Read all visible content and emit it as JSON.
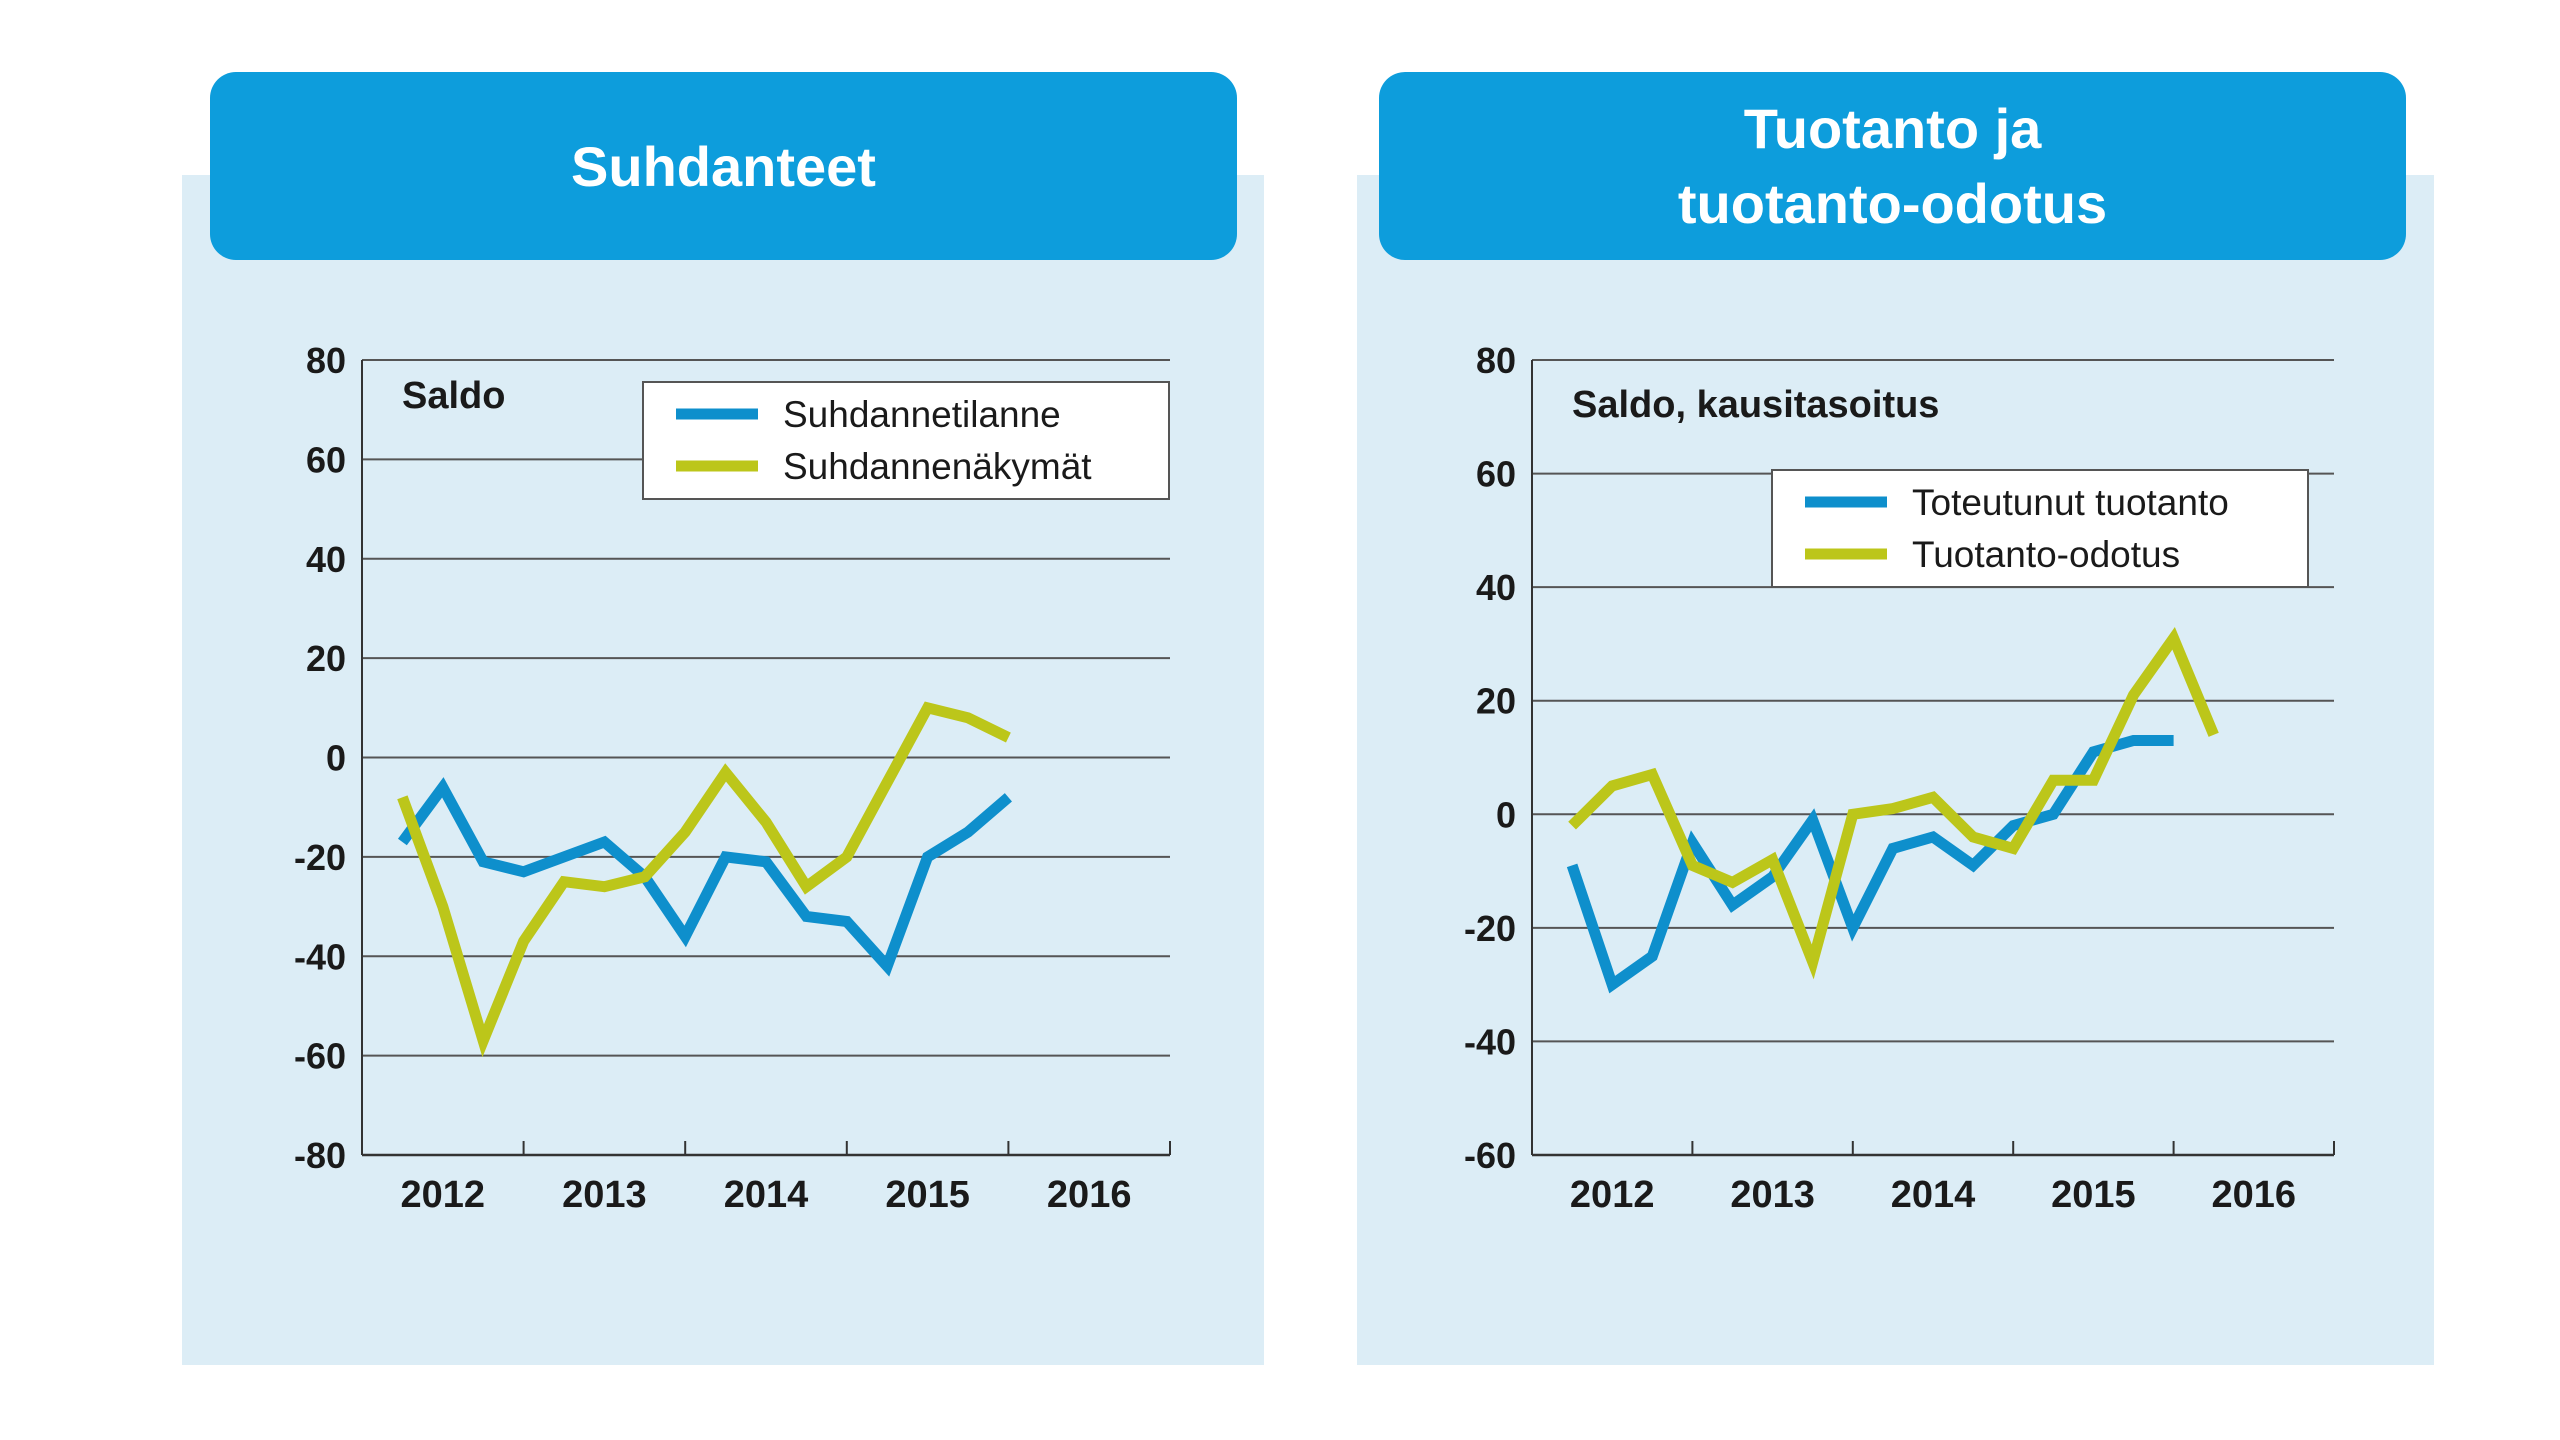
{
  "panels": [
    {
      "title": "Suhdanteet"
    },
    {
      "title": "Tuotanto ja\ntuotanto-odotus"
    }
  ],
  "colors": {
    "blue": "#0e8fcc",
    "olive": "#bcc61a",
    "panel_bg": "#dcedf6",
    "header_bg": "#0d9ddc"
  },
  "chart_data": [
    {
      "type": "line",
      "title": "Suhdanteet",
      "ylabel": "Saldo",
      "ylim": [
        -80,
        80
      ],
      "yticks": [
        80,
        60,
        40,
        20,
        0,
        -20,
        -40,
        -60,
        -80
      ],
      "xlim": [
        2011.5,
        2016.5
      ],
      "xticks": [
        "2012",
        "2013",
        "2014",
        "2015",
        "2016"
      ],
      "grid": true,
      "legend": "top-right",
      "series": [
        {
          "name": "Suhdannetilanne",
          "color": "#0e8fcc",
          "x": [
            2011.75,
            2012.0,
            2012.25,
            2012.5,
            2012.75,
            2013.0,
            2013.25,
            2013.5,
            2013.75,
            2014.0,
            2014.25,
            2014.5,
            2014.75,
            2015.0,
            2015.25,
            2015.5
          ],
          "y": [
            -17,
            -6,
            -21,
            -23,
            -20,
            -17,
            -24,
            -36,
            -20,
            -21,
            -32,
            -33,
            -42,
            -20,
            -15,
            -8
          ]
        },
        {
          "name": "Suhdannenäkymät",
          "color": "#bcc61a",
          "x": [
            2011.75,
            2012.0,
            2012.25,
            2012.5,
            2012.75,
            2013.0,
            2013.25,
            2013.5,
            2013.75,
            2014.0,
            2014.25,
            2014.5,
            2014.75,
            2015.0,
            2015.25,
            2015.5
          ],
          "y": [
            -8,
            -30,
            -57,
            -37,
            -25,
            -26,
            -24,
            -15,
            -3,
            -13,
            -26,
            -20,
            -5,
            10,
            8,
            4
          ]
        }
      ]
    },
    {
      "type": "line",
      "title": "Tuotanto ja tuotanto-odotus",
      "ylabel": "Saldo, kausitasoitus",
      "ylim": [
        -60,
        80
      ],
      "yticks": [
        80,
        60,
        40,
        20,
        0,
        -20,
        -40,
        -60
      ],
      "xlim": [
        2011.5,
        2016.5
      ],
      "xticks": [
        "2012",
        "2013",
        "2014",
        "2015",
        "2016"
      ],
      "grid": true,
      "legend": "top-right",
      "series": [
        {
          "name": "Toteutunut tuotanto",
          "color": "#0e8fcc",
          "x": [
            2011.75,
            2012.0,
            2012.25,
            2012.5,
            2012.75,
            2013.0,
            2013.25,
            2013.5,
            2013.75,
            2014.0,
            2014.25,
            2014.5,
            2014.75,
            2015.0,
            2015.25,
            2015.5
          ],
          "y": [
            -9,
            -30,
            -25,
            -5,
            -16,
            -11,
            -1,
            -20,
            -6,
            -4,
            -9,
            -2,
            0,
            11,
            13,
            13
          ]
        },
        {
          "name": "Tuotanto-odotus",
          "color": "#bcc61a",
          "x": [
            2011.75,
            2012.0,
            2012.25,
            2012.5,
            2012.75,
            2013.0,
            2013.25,
            2013.5,
            2013.75,
            2014.0,
            2014.25,
            2014.5,
            2014.75,
            2015.0,
            2015.25,
            2015.5,
            2015.75
          ],
          "y": [
            -2,
            5,
            7,
            -9,
            -12,
            -8,
            -26,
            0,
            1,
            3,
            -4,
            -6,
            6,
            6,
            21,
            31,
            14
          ]
        }
      ]
    }
  ]
}
